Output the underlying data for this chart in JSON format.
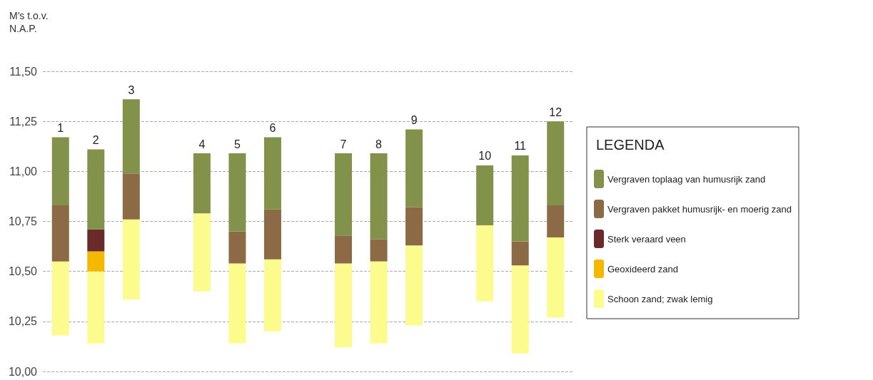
{
  "chart_data": {
    "type": "bar",
    "ylabel": "M's t.o.v. N.A.P.",
    "legend_title": "LEGENDA",
    "categories": [
      "1",
      "2",
      "3",
      null,
      "4",
      "5",
      "6",
      null,
      "7",
      "8",
      "9",
      null,
      "10",
      "11",
      "12"
    ],
    "series": [
      {
        "name": "Schoon zand; zwak lemig",
        "color": "#fbfb8e",
        "base": [
          10.18,
          10.14,
          10.36,
          null,
          10.4,
          10.14,
          10.2,
          null,
          10.12,
          10.14,
          10.23,
          null,
          10.35,
          10.09,
          10.27
        ],
        "values": [
          0.37,
          0.36,
          0.4,
          null,
          0.39,
          0.4,
          0.36,
          null,
          0.42,
          0.41,
          0.4,
          null,
          0.38,
          0.44,
          0.4
        ]
      },
      {
        "name": "Geoxideerd zand",
        "color": "#f5b800",
        "base": [
          null,
          10.5,
          null,
          null,
          null,
          null,
          null,
          null,
          null,
          null,
          null,
          null,
          null,
          null,
          null
        ],
        "values": [
          null,
          0.1,
          null,
          null,
          null,
          null,
          null,
          null,
          null,
          null,
          null,
          null,
          null,
          null,
          null
        ]
      },
      {
        "name": "Sterk veraard veen",
        "color": "#6b2a2a",
        "base": [
          null,
          10.6,
          null,
          null,
          null,
          null,
          null,
          null,
          null,
          null,
          null,
          null,
          null,
          null,
          null
        ],
        "values": [
          null,
          0.11,
          null,
          null,
          null,
          null,
          null,
          null,
          null,
          null,
          null,
          null,
          null,
          null,
          null
        ]
      },
      {
        "name": "Vergraven pakket humusrijk- en moerig zand",
        "color": "#8b6a45",
        "base": [
          10.55,
          null,
          10.76,
          null,
          null,
          10.54,
          10.56,
          null,
          10.54,
          10.55,
          10.63,
          null,
          null,
          10.53,
          10.67
        ],
        "values": [
          0.28,
          null,
          0.23,
          null,
          null,
          0.16,
          0.25,
          null,
          0.14,
          0.11,
          0.19,
          null,
          null,
          0.12,
          0.16
        ]
      },
      {
        "name": "Vergraven toplaag van humusrijk zand",
        "color": "#83924a",
        "base": [
          10.83,
          10.71,
          10.99,
          null,
          10.79,
          10.7,
          10.81,
          null,
          10.68,
          10.66,
          10.82,
          null,
          10.73,
          10.65,
          10.83
        ],
        "values": [
          0.34,
          0.4,
          0.37,
          null,
          0.3,
          0.39,
          0.36,
          null,
          0.41,
          0.43,
          0.39,
          null,
          0.3,
          0.43,
          0.42
        ]
      }
    ],
    "ylim": [
      10.0,
      11.5
    ],
    "yticks": [
      {
        "value": 10.0,
        "label": "10,00"
      },
      {
        "value": 10.25,
        "label": "10,25"
      },
      {
        "value": 10.5,
        "label": "10,50"
      },
      {
        "value": 10.75,
        "label": "10,75"
      },
      {
        "value": 11.0,
        "label": "11,00"
      },
      {
        "value": 11.25,
        "label": "11,25"
      },
      {
        "value": 11.5,
        "label": "11,50"
      }
    ],
    "grid": "y",
    "legend": "right",
    "tick_labels": "y"
  }
}
